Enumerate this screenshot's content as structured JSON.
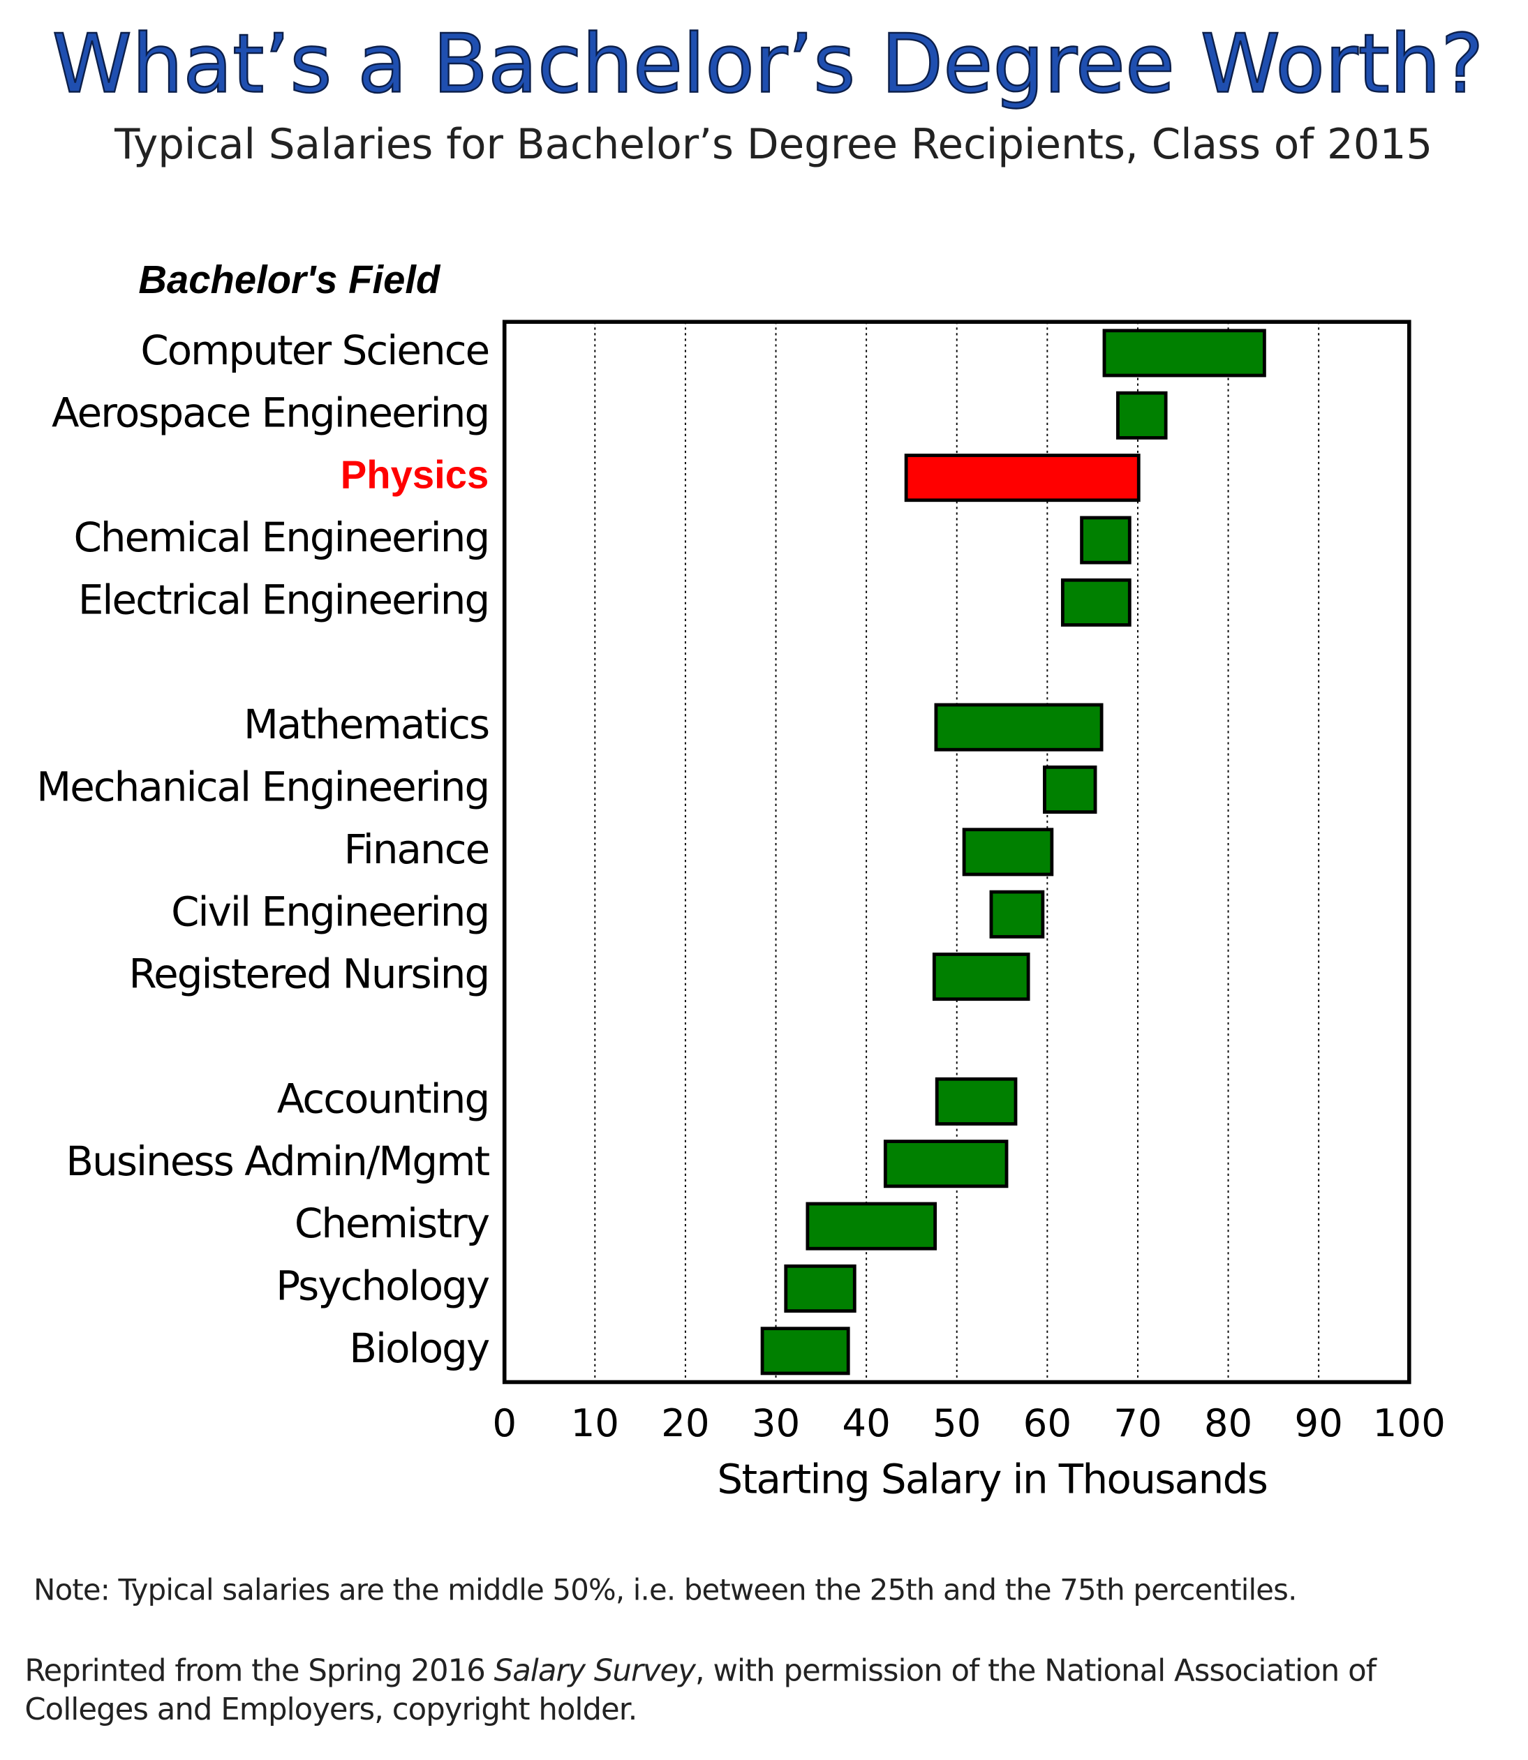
{
  "chart_data": {
    "type": "floating_bar",
    "title": "What’s a Bachelor’s Degree Worth?",
    "subtitle": "Typical Salaries for Bachelor’s Degree Recipients, Class of 2015",
    "ylabel": "Bachelor's Field",
    "xlabel": "Starting Salary in Thousands",
    "categories": [
      "Computer Science",
      "Aerospace Engineering",
      "Physics",
      "Chemical Engineering",
      "Electrical Engineering",
      null,
      "Mathematics",
      "Mechanical Engineering",
      "Finance",
      "Civil Engineering",
      "Registered Nursing",
      null,
      "Accounting",
      "Business Admin/Mgmt",
      "Chemistry",
      "Psychology",
      "Biology"
    ],
    "low": [
      66.3,
      67.8,
      44.4,
      63.8,
      61.7,
      null,
      47.7,
      59.7,
      50.8,
      53.8,
      47.5,
      null,
      47.8,
      42.1,
      33.5,
      31.1,
      28.5
    ],
    "high": [
      84.0,
      73.1,
      70.1,
      69.1,
      69.1,
      null,
      66.0,
      65.3,
      60.5,
      59.5,
      57.9,
      null,
      56.5,
      55.5,
      47.6,
      38.7,
      38.0
    ],
    "colors": [
      "#008000",
      "#008000",
      "#ff0000",
      "#008000",
      "#008000",
      null,
      "#008000",
      "#008000",
      "#008000",
      "#008000",
      "#008000",
      null,
      "#008000",
      "#008000",
      "#008000",
      "#008000",
      "#008000"
    ],
    "highlight_color": "#ff0000",
    "xlim": [
      0,
      100
    ],
    "xticks": [
      0,
      10,
      20,
      30,
      40,
      50,
      60,
      70,
      80,
      90,
      100
    ],
    "grid": true,
    "note": "Note: Typical salaries are the middle 50%, i.e. between the 25th and the 75th percentiles.",
    "source": [
      "Reprinted from the Spring 2016 ",
      "Salary Survey",
      ", with permission of the National Association of",
      "Colleges and Employers, copyright holder."
    ]
  }
}
